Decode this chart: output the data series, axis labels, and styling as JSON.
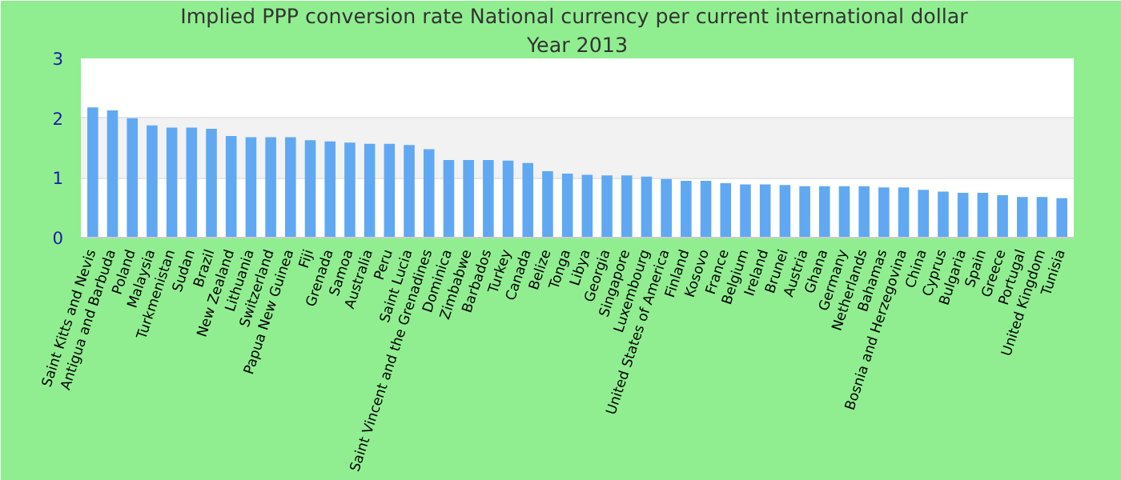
{
  "chart_data": {
    "type": "bar",
    "title": "Implied PPP conversion rate  National currency per current international dollar",
    "subtitle": "Year 2013",
    "categories": [
      "Saint Kitts and Nevis",
      "Antigua and Barbuda",
      "Poland",
      "Malaysia",
      "Turkmenistan",
      "Sudan",
      "Brazil",
      "New Zealand",
      "Lithuania",
      "Switzerland",
      "Papua New Guinea",
      "Fiji",
      "Grenada",
      "Samoa",
      "Australia",
      "Peru",
      "Saint Lucia",
      "Saint Vincent and the Grenadines",
      "Dominica",
      "Zimbabwe",
      "Barbados",
      "Turkey",
      "Canada",
      "Belize",
      "Tonga",
      "Libya",
      "Georgia",
      "Singapore",
      "Luxembourg",
      "United States of America",
      "Finland",
      "Kosovo",
      "France",
      "Belgium",
      "Ireland",
      "Brunei",
      "Austria",
      "Ghana",
      "Germany",
      "Netherlands",
      "Bahamas",
      "Bosnia and Herzegovina",
      "China",
      "Cyprus",
      "Bulgaria",
      "Spain",
      "Greece",
      "Portugal",
      "United Kingdom",
      "Tunisia"
    ],
    "values": [
      2.18,
      2.13,
      2.0,
      1.88,
      1.84,
      1.84,
      1.82,
      1.7,
      1.68,
      1.68,
      1.68,
      1.63,
      1.61,
      1.59,
      1.57,
      1.57,
      1.55,
      1.48,
      1.3,
      1.3,
      1.3,
      1.29,
      1.25,
      1.11,
      1.07,
      1.05,
      1.04,
      1.04,
      1.02,
      0.98,
      0.95,
      0.95,
      0.91,
      0.89,
      0.89,
      0.88,
      0.86,
      0.86,
      0.86,
      0.86,
      0.84,
      0.84,
      0.8,
      0.77,
      0.75,
      0.75,
      0.71,
      0.68,
      0.68,
      0.66
    ],
    "color": "#60a9f2",
    "ylim": [
      0,
      3
    ],
    "yticks": [
      0,
      1,
      2,
      3
    ],
    "grid": "y",
    "bands": [
      {
        "axis": "y",
        "from": 1,
        "to": 2,
        "color": "#f2f2f2"
      }
    ]
  }
}
